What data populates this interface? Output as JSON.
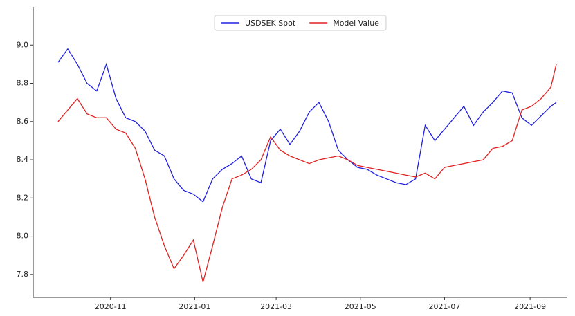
{
  "chart_data": {
    "type": "line",
    "x": [
      "2020-09-24",
      "2020-10-01",
      "2020-10-08",
      "2020-10-15",
      "2020-10-22",
      "2020-10-29",
      "2020-11-05",
      "2020-11-12",
      "2020-11-19",
      "2020-11-26",
      "2020-12-03",
      "2020-12-10",
      "2020-12-17",
      "2020-12-24",
      "2020-12-31",
      "2021-01-07",
      "2021-01-14",
      "2021-01-21",
      "2021-01-28",
      "2021-02-04",
      "2021-02-11",
      "2021-02-18",
      "2021-02-25",
      "2021-03-04",
      "2021-03-11",
      "2021-03-18",
      "2021-03-25",
      "2021-04-01",
      "2021-04-08",
      "2021-04-15",
      "2021-04-22",
      "2021-04-29",
      "2021-05-06",
      "2021-05-13",
      "2021-05-20",
      "2021-05-27",
      "2021-06-03",
      "2021-06-10",
      "2021-06-17",
      "2021-06-24",
      "2021-07-01",
      "2021-07-08",
      "2021-07-15",
      "2021-07-22",
      "2021-07-29",
      "2021-08-05",
      "2021-08-12",
      "2021-08-19",
      "2021-08-26",
      "2021-09-02",
      "2021-09-09",
      "2021-09-16",
      "2021-09-20"
    ],
    "series": [
      {
        "name": "USDSEK Spot",
        "color": "#2020e0",
        "values": [
          8.91,
          8.98,
          8.9,
          8.8,
          8.76,
          8.9,
          8.72,
          8.62,
          8.6,
          8.55,
          8.45,
          8.42,
          8.3,
          8.24,
          8.22,
          8.18,
          8.3,
          8.35,
          8.38,
          8.42,
          8.3,
          8.28,
          8.5,
          8.56,
          8.48,
          8.55,
          8.65,
          8.7,
          8.6,
          8.45,
          8.4,
          8.36,
          8.35,
          8.32,
          8.3,
          8.28,
          8.27,
          8.3,
          8.58,
          8.5,
          8.56,
          8.62,
          8.68,
          8.58,
          8.65,
          8.7,
          8.76,
          8.75,
          8.62,
          8.58,
          8.63,
          8.68,
          8.7
        ]
      },
      {
        "name": "Model Value",
        "color": "#e02020",
        "values": [
          8.6,
          8.66,
          8.72,
          8.64,
          8.62,
          8.62,
          8.56,
          8.54,
          8.46,
          8.3,
          8.1,
          7.95,
          7.83,
          7.9,
          7.98,
          7.76,
          7.95,
          8.15,
          8.3,
          8.32,
          8.35,
          8.4,
          8.52,
          8.45,
          8.42,
          8.4,
          8.38,
          8.4,
          8.41,
          8.42,
          8.4,
          8.37,
          8.36,
          8.35,
          8.34,
          8.33,
          8.32,
          8.31,
          8.33,
          8.3,
          8.36,
          8.37,
          8.38,
          8.39,
          8.4,
          8.46,
          8.47,
          8.5,
          8.66,
          8.68,
          8.72,
          8.78,
          8.9
        ]
      }
    ],
    "xlim": [
      "2020-09-06",
      "2021-09-28"
    ],
    "xticks": [
      {
        "value": "2020-11-01",
        "label": "2020-11"
      },
      {
        "value": "2021-01-01",
        "label": "2021-01"
      },
      {
        "value": "2021-03-01",
        "label": "2021-03"
      },
      {
        "value": "2021-05-01",
        "label": "2021-05"
      },
      {
        "value": "2021-07-01",
        "label": "2021-07"
      },
      {
        "value": "2021-09-01",
        "label": "2021-09"
      }
    ],
    "ylim": [
      7.68,
      9.2
    ],
    "yticks": [
      7.8,
      {
        "value": 8,
        "label": "8.0"
      },
      8.2,
      8.4,
      8.6,
      8.8,
      {
        "value": 9,
        "label": "9.0"
      }
    ],
    "legend": "upper center"
  }
}
